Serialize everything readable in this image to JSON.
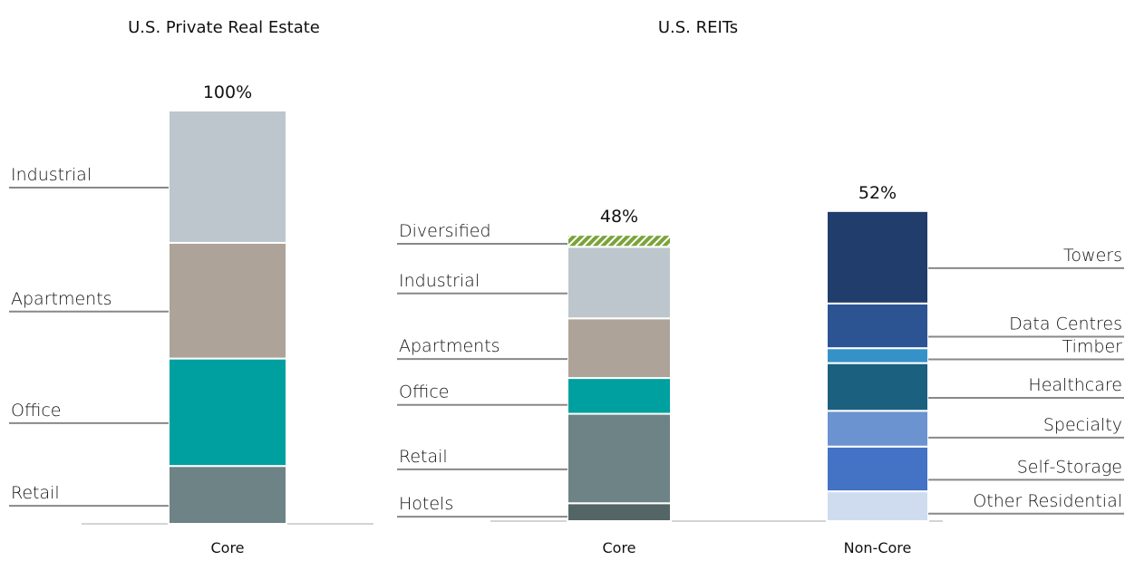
{
  "chart_data": [
    {
      "type": "bar",
      "stacked": true,
      "title": "U.S. Private Real Estate",
      "categories": [
        "Core"
      ],
      "totals": [
        100
      ],
      "total_labels": [
        "100%"
      ],
      "series": [
        {
          "name": "Retail",
          "color": "#6e8385",
          "values": [
            14
          ]
        },
        {
          "name": "Office",
          "color": "#00a0a0",
          "values": [
            26
          ]
        },
        {
          "name": "Apartments",
          "color": "#ada398",
          "values": [
            28
          ]
        },
        {
          "name": "Industrial",
          "color": "#bcc6cc",
          "values": [
            32
          ]
        }
      ]
    },
    {
      "type": "bar",
      "stacked": true,
      "title": "U.S. REITs",
      "categories": [
        "Core",
        "Non-Core"
      ],
      "totals": [
        48,
        52
      ],
      "total_labels": [
        "48%",
        "52%"
      ],
      "series": [
        {
          "name": "Hotels",
          "color": "#546565",
          "values": [
            3,
            null
          ]
        },
        {
          "name": "Retail",
          "color": "#6e8385",
          "values": [
            15,
            null
          ]
        },
        {
          "name": "Office",
          "color": "#00a0a0",
          "values": [
            6,
            null
          ]
        },
        {
          "name": "Apartments",
          "color": "#ada398",
          "values": [
            10,
            null
          ]
        },
        {
          "name": "Industrial",
          "color": "#bcc6cc",
          "values": [
            12,
            null
          ]
        },
        {
          "name": "Diversified",
          "color": "#7aa33a",
          "pattern": "hatch",
          "values": [
            2,
            null
          ]
        },
        {
          "name": "Other Residential",
          "color": "#cfdcef",
          "values": [
            null,
            5
          ]
        },
        {
          "name": "Self-Storage",
          "color": "#4472c4",
          "values": [
            null,
            7.5
          ]
        },
        {
          "name": "Specialty",
          "color": "#6b93d0",
          "values": [
            null,
            6
          ]
        },
        {
          "name": "Healthcare",
          "color": "#1c6080",
          "values": [
            null,
            8
          ]
        },
        {
          "name": "Timber",
          "color": "#3592c8",
          "values": [
            null,
            2.5
          ]
        },
        {
          "name": "Data Centres",
          "color": "#2d5492",
          "values": [
            null,
            7.5
          ]
        },
        {
          "name": "Towers",
          "color": "#213d6b",
          "values": [
            null,
            15.5
          ]
        }
      ]
    }
  ]
}
